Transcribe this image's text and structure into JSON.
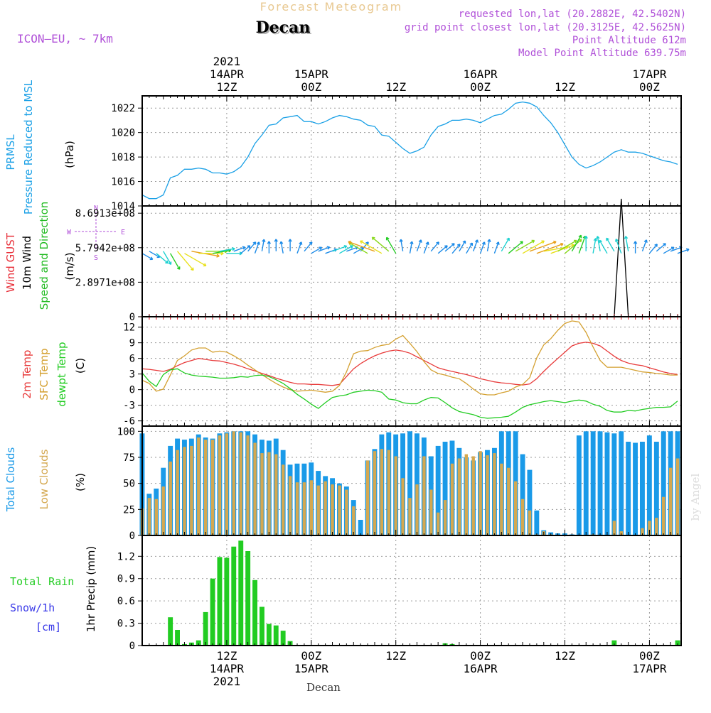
{
  "header": {
    "title": "Forecast Meteogram",
    "location": "Decan",
    "model": "ICON–EU, ~ 7km",
    "requested": "requested lon,lat (20.2882E, 42.5402N)",
    "gridpoint": "grid point closest lon,lat (20.3125E, 42.5625N)",
    "point_alt": "Point Altitude 612m",
    "model_alt": "Model Point Altitude 639.75m",
    "bottom_label": "Decan",
    "watermark": "by Angel"
  },
  "time_axis": {
    "top_labels": [
      {
        "h": 12,
        "lines": [
          "2021",
          "14APR",
          "12Z"
        ]
      },
      {
        "h": 24,
        "lines": [
          "15APR",
          "00Z"
        ]
      },
      {
        "h": 36,
        "lines": [
          "12Z"
        ]
      },
      {
        "h": 48,
        "lines": [
          "16APR",
          "00Z"
        ]
      },
      {
        "h": 60,
        "lines": [
          "12Z"
        ]
      },
      {
        "h": 72,
        "lines": [
          "17APR",
          "00Z"
        ]
      }
    ],
    "bottom_labels": [
      {
        "h": 12,
        "lines": [
          "12Z",
          "14APR",
          "2021"
        ]
      },
      {
        "h": 24,
        "lines": [
          "00Z",
          "15APR"
        ]
      },
      {
        "h": 36,
        "lines": [
          "12Z"
        ]
      },
      {
        "h": 48,
        "lines": [
          "00Z",
          "16APR"
        ]
      },
      {
        "h": 60,
        "lines": [
          "12Z"
        ]
      },
      {
        "h": 72,
        "lines": [
          "00Z",
          "17APR"
        ]
      }
    ]
  },
  "colors": {
    "pressure": "#1aa0e6",
    "gust": "#e8303a",
    "wind_label": "#000000",
    "wind_dir_label": "#22bb22",
    "temp2m": "#e83a3a",
    "sfc": "#d4a030",
    "dewpt": "#22cc22",
    "cloud_total": "#1a9ae8",
    "cloud_low": "#d4a850",
    "rain": "#22cc22",
    "snow": "#3a3ae8",
    "title": "#e8c890",
    "info": "#b050d8",
    "watermark": "#dddddd"
  },
  "chart_data": [
    {
      "type": "line",
      "panel": "pressure",
      "side_labels": [
        "PRMSL",
        "Pressure Reduced to MSL"
      ],
      "ylabel": "(hPa)",
      "ylim": [
        1014,
        1023
      ],
      "yticks": [
        1014,
        1016,
        1018,
        1020,
        1022
      ],
      "xlim": [
        0,
        76.5
      ],
      "x": [
        0,
        1,
        2,
        3,
        4,
        5,
        6,
        7,
        8,
        9,
        10,
        11,
        12,
        13,
        14,
        15,
        16,
        17,
        18,
        19,
        20,
        21,
        22,
        23,
        24,
        25,
        26,
        27,
        28,
        29,
        30,
        31,
        32,
        33,
        34,
        35,
        36,
        37,
        38,
        39,
        40,
        41,
        42,
        43,
        44,
        45,
        46,
        47,
        48,
        49,
        50,
        51,
        52,
        53,
        54,
        55,
        56,
        57,
        58,
        59,
        60,
        61,
        62,
        63,
        64,
        65,
        66,
        67,
        68,
        69,
        70,
        71,
        72,
        73,
        74,
        75,
        76
      ],
      "series": [
        {
          "name": "PRMSL",
          "values": [
            1014.9,
            1014.6,
            1014.6,
            1014.9,
            1016.3,
            1016.5,
            1017.0,
            1017.0,
            1017.1,
            1017.0,
            1016.7,
            1016.7,
            1016.6,
            1016.8,
            1017.2,
            1018.0,
            1019.1,
            1019.8,
            1020.6,
            1020.7,
            1021.2,
            1021.3,
            1021.4,
            1020.9,
            1020.9,
            1020.7,
            1020.9,
            1021.2,
            1021.4,
            1021.3,
            1021.1,
            1021.0,
            1020.6,
            1020.5,
            1019.8,
            1019.7,
            1019.2,
            1018.7,
            1018.3,
            1018.5,
            1018.8,
            1019.8,
            1020.5,
            1020.7,
            1021.0,
            1021.0,
            1021.1,
            1021.0,
            1020.8,
            1021.1,
            1021.4,
            1021.5,
            1021.9,
            1022.4,
            1022.5,
            1022.4,
            1022.1,
            1021.4,
            1020.8,
            1020.0,
            1019.0,
            1018.0,
            1017.4,
            1017.1,
            1017.3,
            1017.6,
            1018.0,
            1018.4,
            1018.6,
            1018.4,
            1018.4,
            1018.3,
            1018.1,
            1017.9,
            1017.7,
            1017.6,
            1017.4
          ]
        }
      ]
    },
    {
      "type": "line",
      "panel": "wind",
      "side_labels": [
        "Wind GUST",
        "10m Wind",
        "Speed and Direction"
      ],
      "ylabel": "(m/s)",
      "compass": [
        "N",
        "E",
        "S",
        "W"
      ],
      "ylim": [
        0,
        930000000.0
      ],
      "yticks": [
        0,
        289710000.0,
        579420000.0,
        869130000.0
      ],
      "ytick_labels": [
        "0",
        "2.8971e+08",
        "5.7942e+08",
        "8.6913e+08"
      ],
      "xlim": [
        0,
        76.5
      ],
      "gust_x": [
        0,
        67,
        68,
        69,
        76.5
      ],
      "gust_values": [
        0,
        0,
        990000000.0,
        0,
        0
      ],
      "barb_level": 579420000.0,
      "wind_dir_deg": [
        300,
        300,
        310,
        330,
        330,
        320,
        300,
        280,
        270,
        270,
        260,
        260,
        270,
        250,
        230,
        220,
        200,
        190,
        180,
        180,
        170,
        180,
        200,
        220,
        240,
        250,
        250,
        250,
        240,
        250,
        240,
        220,
        120,
        110,
        120,
        130,
        150,
        170,
        190,
        200,
        200,
        220,
        230,
        230,
        220,
        210,
        210,
        200,
        200,
        190,
        200,
        210,
        230,
        240,
        240,
        250,
        250,
        260,
        250,
        240,
        230,
        210,
        200,
        180,
        190,
        170,
        150,
        150,
        160,
        170,
        180,
        200,
        220,
        230,
        240,
        250,
        250
      ],
      "wind_speed": [
        2,
        2,
        3,
        3,
        4,
        6,
        6,
        7,
        6,
        5,
        4,
        3,
        3,
        2,
        2,
        2,
        2,
        2,
        2,
        2,
        2,
        2,
        2,
        2,
        2,
        2,
        2,
        3,
        3,
        2,
        2,
        2,
        5,
        7,
        6,
        5,
        4,
        2,
        2,
        2,
        2,
        2,
        2,
        2,
        2,
        2,
        2,
        2,
        2,
        2,
        2,
        3,
        4,
        5,
        6,
        7,
        7,
        6,
        6,
        5,
        5,
        4,
        4,
        3,
        3,
        3,
        3,
        3,
        3,
        3,
        2,
        2,
        2,
        2,
        2,
        2,
        2
      ]
    },
    {
      "type": "line",
      "panel": "temperature",
      "side_labels": [
        "2m Temp",
        "SFC Temp",
        "dewpt Temp"
      ],
      "ylabel": "(C)",
      "ylim": [
        -7,
        14
      ],
      "yticks": [
        -6,
        -3,
        0,
        3,
        6,
        9,
        12
      ],
      "xlim": [
        0,
        76.5
      ],
      "x": [
        0,
        1,
        2,
        3,
        4,
        5,
        6,
        7,
        8,
        9,
        10,
        11,
        12,
        13,
        14,
        15,
        16,
        17,
        18,
        19,
        20,
        21,
        22,
        23,
        24,
        25,
        26,
        27,
        28,
        29,
        30,
        31,
        32,
        33,
        34,
        35,
        36,
        37,
        38,
        39,
        40,
        41,
        42,
        43,
        44,
        45,
        46,
        47,
        48,
        49,
        50,
        51,
        52,
        53,
        54,
        55,
        56,
        57,
        58,
        59,
        60,
        61,
        62,
        63,
        64,
        65,
        66,
        67,
        68,
        69,
        70,
        71,
        72,
        73,
        74,
        75,
        76
      ],
      "series": [
        {
          "name": "2m Temp",
          "values": [
            4.0,
            3.9,
            3.7,
            3.5,
            3.9,
            4.6,
            5.2,
            5.6,
            6.0,
            5.8,
            5.6,
            5.5,
            5.2,
            4.9,
            4.5,
            4.0,
            3.6,
            3.1,
            2.7,
            2.2,
            1.8,
            1.4,
            1.1,
            1.1,
            1.0,
            1.0,
            0.9,
            0.8,
            1.0,
            2.5,
            4.0,
            5.0,
            5.8,
            6.5,
            7.0,
            7.4,
            7.6,
            7.4,
            7.0,
            6.3,
            5.6,
            4.9,
            4.2,
            3.8,
            3.5,
            3.2,
            2.9,
            2.5,
            2.1,
            1.8,
            1.5,
            1.3,
            1.2,
            1.0,
            0.9,
            1.1,
            2.1,
            3.5,
            4.8,
            6.0,
            7.2,
            8.4,
            8.9,
            9.1,
            8.9,
            8.4,
            7.4,
            6.4,
            5.6,
            5.1,
            4.8,
            4.6,
            4.2,
            3.8,
            3.4,
            3.1,
            2.9
          ]
        },
        {
          "name": "SFC Temp",
          "values": [
            1.8,
            1.2,
            -0.3,
            0.1,
            2.8,
            5.6,
            6.5,
            7.6,
            8.0,
            8.0,
            7.2,
            7.4,
            7.2,
            6.5,
            5.7,
            4.7,
            3.8,
            2.9,
            2.0,
            1.2,
            0.5,
            0.0,
            -0.3,
            -0.2,
            -0.1,
            -0.3,
            -0.5,
            -0.3,
            0.8,
            3.4,
            6.9,
            7.4,
            7.5,
            8.1,
            8.5,
            8.7,
            9.7,
            10.4,
            8.9,
            7.3,
            5.4,
            3.8,
            3.1,
            2.8,
            2.4,
            2.1,
            1.2,
            0.1,
            -0.8,
            -1.0,
            -1.0,
            -0.6,
            -0.3,
            0.5,
            1.0,
            2.3,
            6.1,
            8.6,
            9.8,
            11.4,
            12.7,
            13.2,
            13.0,
            11.0,
            8.2,
            5.6,
            4.3,
            4.3,
            4.3,
            4.0,
            3.7,
            3.4,
            3.3,
            3.1,
            3.0,
            2.8,
            2.8
          ]
        },
        {
          "name": "dewpt Temp",
          "values": [
            3.2,
            1.6,
            0.6,
            2.9,
            3.8,
            4.0,
            3.2,
            2.8,
            2.6,
            2.5,
            2.4,
            2.2,
            2.2,
            2.3,
            2.5,
            2.4,
            2.7,
            2.8,
            2.5,
            1.9,
            1.2,
            0.2,
            -0.9,
            -1.8,
            -2.8,
            -3.6,
            -2.5,
            -1.5,
            -1.2,
            -1.0,
            -0.5,
            -0.3,
            -0.1,
            -0.2,
            -0.5,
            -1.8,
            -2.0,
            -2.5,
            -2.7,
            -2.7,
            -2.0,
            -1.5,
            -1.6,
            -2.5,
            -3.5,
            -4.2,
            -4.5,
            -4.8,
            -5.3,
            -5.5,
            -5.4,
            -5.3,
            -5.1,
            -4.3,
            -3.4,
            -2.9,
            -2.6,
            -2.3,
            -2.1,
            -2.3,
            -2.5,
            -2.2,
            -2.0,
            -2.2,
            -2.8,
            -3.2,
            -4.0,
            -4.3,
            -4.3,
            -4.0,
            -4.1,
            -3.8,
            -3.6,
            -3.4,
            -3.4,
            -3.3,
            -2.2
          ]
        }
      ]
    },
    {
      "type": "bar",
      "panel": "clouds",
      "side_labels": [
        "Total Clouds",
        "Low Clouds"
      ],
      "ylabel": "(%)",
      "ylim": [
        0,
        105
      ],
      "yticks": [
        0,
        25,
        50,
        75,
        100
      ],
      "xlim": [
        0,
        76.5
      ],
      "x": [
        0,
        1,
        2,
        3,
        4,
        5,
        6,
        7,
        8,
        9,
        10,
        11,
        12,
        13,
        14,
        15,
        16,
        17,
        18,
        19,
        20,
        21,
        22,
        23,
        24,
        25,
        26,
        27,
        28,
        29,
        30,
        31,
        32,
        33,
        34,
        35,
        36,
        37,
        38,
        39,
        40,
        41,
        42,
        43,
        44,
        45,
        46,
        47,
        48,
        49,
        50,
        51,
        52,
        53,
        54,
        55,
        56,
        57,
        58,
        59,
        60,
        61,
        62,
        63,
        64,
        65,
        66,
        67,
        68,
        69,
        70,
        71,
        72,
        73,
        74,
        75,
        76
      ],
      "series": [
        {
          "name": "Total Clouds",
          "values": [
            98,
            40,
            45,
            65,
            86,
            93,
            92,
            93,
            97,
            94,
            93,
            98,
            99,
            100,
            100,
            100,
            97,
            92,
            91,
            93,
            82,
            68,
            69,
            69,
            70,
            62,
            57,
            55,
            50,
            47,
            34,
            15,
            72,
            83,
            97,
            99,
            97,
            98,
            100,
            98,
            94,
            76,
            86,
            90,
            91,
            84,
            75,
            72,
            80,
            82,
            84,
            100,
            100,
            100,
            78,
            63,
            24,
            5,
            3,
            2,
            2,
            1,
            96,
            100,
            100,
            100,
            99,
            98,
            100,
            90,
            89,
            90,
            96,
            90,
            100,
            100,
            100
          ]
        },
        {
          "name": "Low Clouds",
          "values": [
            26,
            36,
            35,
            47,
            71,
            82,
            85,
            86,
            94,
            92,
            92,
            96,
            98,
            100,
            99,
            96,
            89,
            79,
            80,
            78,
            68,
            57,
            51,
            51,
            53,
            48,
            52,
            49,
            48,
            44,
            28,
            0,
            72,
            81,
            83,
            82,
            76,
            55,
            36,
            49,
            76,
            44,
            22,
            34,
            69,
            74,
            78,
            76,
            81,
            77,
            79,
            69,
            65,
            52,
            35,
            24,
            1,
            4,
            1,
            0,
            0,
            0,
            0,
            0,
            1,
            0,
            0,
            14,
            4,
            0,
            0,
            7,
            14,
            17,
            37,
            65,
            74
          ]
        }
      ]
    },
    {
      "type": "bar",
      "panel": "precip",
      "side_labels": [
        "Total Rain",
        "Snow/1h",
        "[cm]"
      ],
      "ylabel": "1hr Precip (mm)",
      "ylim": [
        0,
        1.48
      ],
      "yticks": [
        0,
        0.3,
        0.6,
        0.9,
        1.2
      ],
      "ytick_labels": [
        "0",
        "0.3",
        "0.6",
        "0.9",
        "1.2"
      ],
      "xlim": [
        0,
        76.5
      ],
      "x": [
        0,
        1,
        2,
        3,
        4,
        5,
        6,
        7,
        8,
        9,
        10,
        11,
        12,
        13,
        14,
        15,
        16,
        17,
        18,
        19,
        20,
        21,
        22,
        23,
        24,
        25,
        26,
        27,
        28,
        29,
        30,
        31,
        32,
        33,
        34,
        35,
        36,
        37,
        38,
        39,
        40,
        41,
        42,
        43,
        44,
        45,
        46,
        47,
        48,
        49,
        50,
        51,
        52,
        53,
        54,
        55,
        56,
        57,
        58,
        59,
        60,
        61,
        62,
        63,
        64,
        65,
        66,
        67,
        68,
        69,
        70,
        71,
        72,
        73,
        74,
        75,
        76
      ],
      "series": [
        {
          "name": "Total Rain",
          "values": [
            0,
            0,
            0,
            0,
            0.38,
            0.21,
            0.02,
            0.04,
            0.07,
            0.45,
            0.9,
            1.19,
            1.18,
            1.33,
            1.41,
            1.27,
            0.88,
            0.52,
            0.29,
            0.27,
            0.2,
            0.06,
            0,
            0,
            0,
            0,
            0,
            0,
            0,
            0,
            0,
            0,
            0,
            0,
            0,
            0,
            0,
            0,
            0,
            0.01,
            0.01,
            0,
            0,
            0.03,
            0.02,
            0.01,
            0.01,
            0,
            0,
            0,
            0,
            0,
            0,
            0,
            0,
            0,
            0,
            0,
            0,
            0,
            0,
            0,
            0,
            0,
            0,
            0,
            0,
            0.07,
            0,
            0,
            0,
            0,
            0,
            0,
            0,
            0,
            0.07
          ]
        }
      ]
    }
  ]
}
